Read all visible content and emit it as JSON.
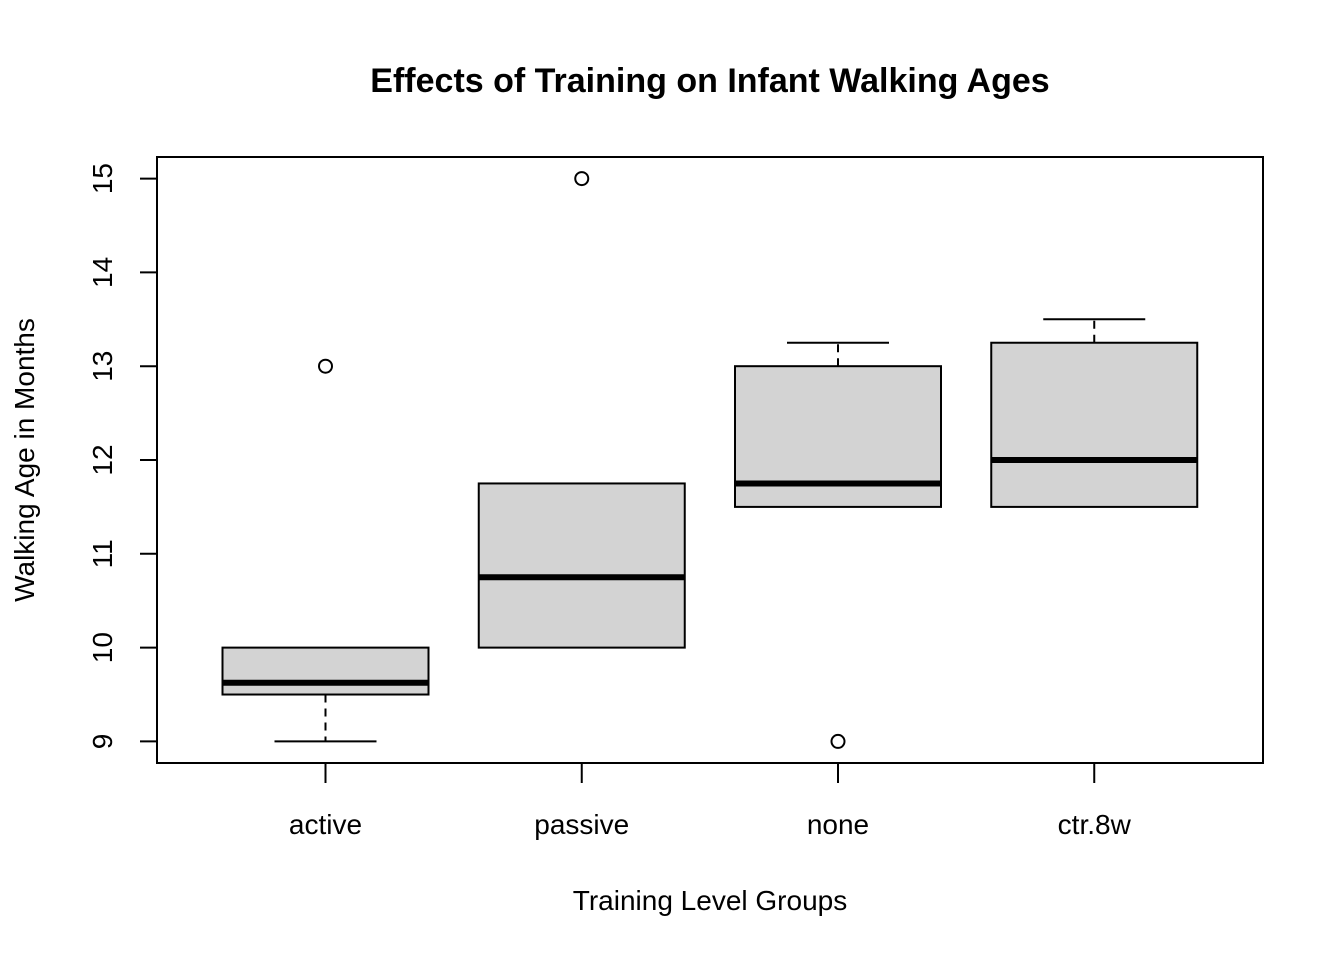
{
  "chart_data": {
    "type": "boxplot",
    "title": "Effects of Training on Infant Walking Ages",
    "xlabel": "Training Level Groups",
    "ylabel": "Walking Age in Months",
    "ylim": [
      8.77,
      15.23
    ],
    "yticks": [
      "9",
      "10",
      "11",
      "12",
      "13",
      "14",
      "15"
    ],
    "categories": [
      "active",
      "passive",
      "none",
      "ctr.8w"
    ],
    "groups": [
      {
        "name": "active",
        "whisker_low": 9.0,
        "q1": 9.5,
        "median": 9.625,
        "q3": 10.0,
        "whisker_high": 10.0,
        "outliers": [
          13.0
        ]
      },
      {
        "name": "passive",
        "whisker_low": 10.0,
        "q1": 10.0,
        "median": 10.75,
        "q3": 11.75,
        "whisker_high": 11.75,
        "outliers": [
          15.0
        ]
      },
      {
        "name": "none",
        "whisker_low": 11.5,
        "q1": 11.5,
        "median": 11.75,
        "q3": 13.0,
        "whisker_high": 13.25,
        "outliers": [
          9.0
        ]
      },
      {
        "name": "ctr.8w",
        "whisker_low": 11.5,
        "q1": 11.5,
        "median": 12.0,
        "q3": 13.25,
        "whisker_high": 13.5,
        "outliers": []
      }
    ],
    "box_fill": "#d3d3d3",
    "line_color": "#000000",
    "grid": false,
    "legend": "none"
  }
}
